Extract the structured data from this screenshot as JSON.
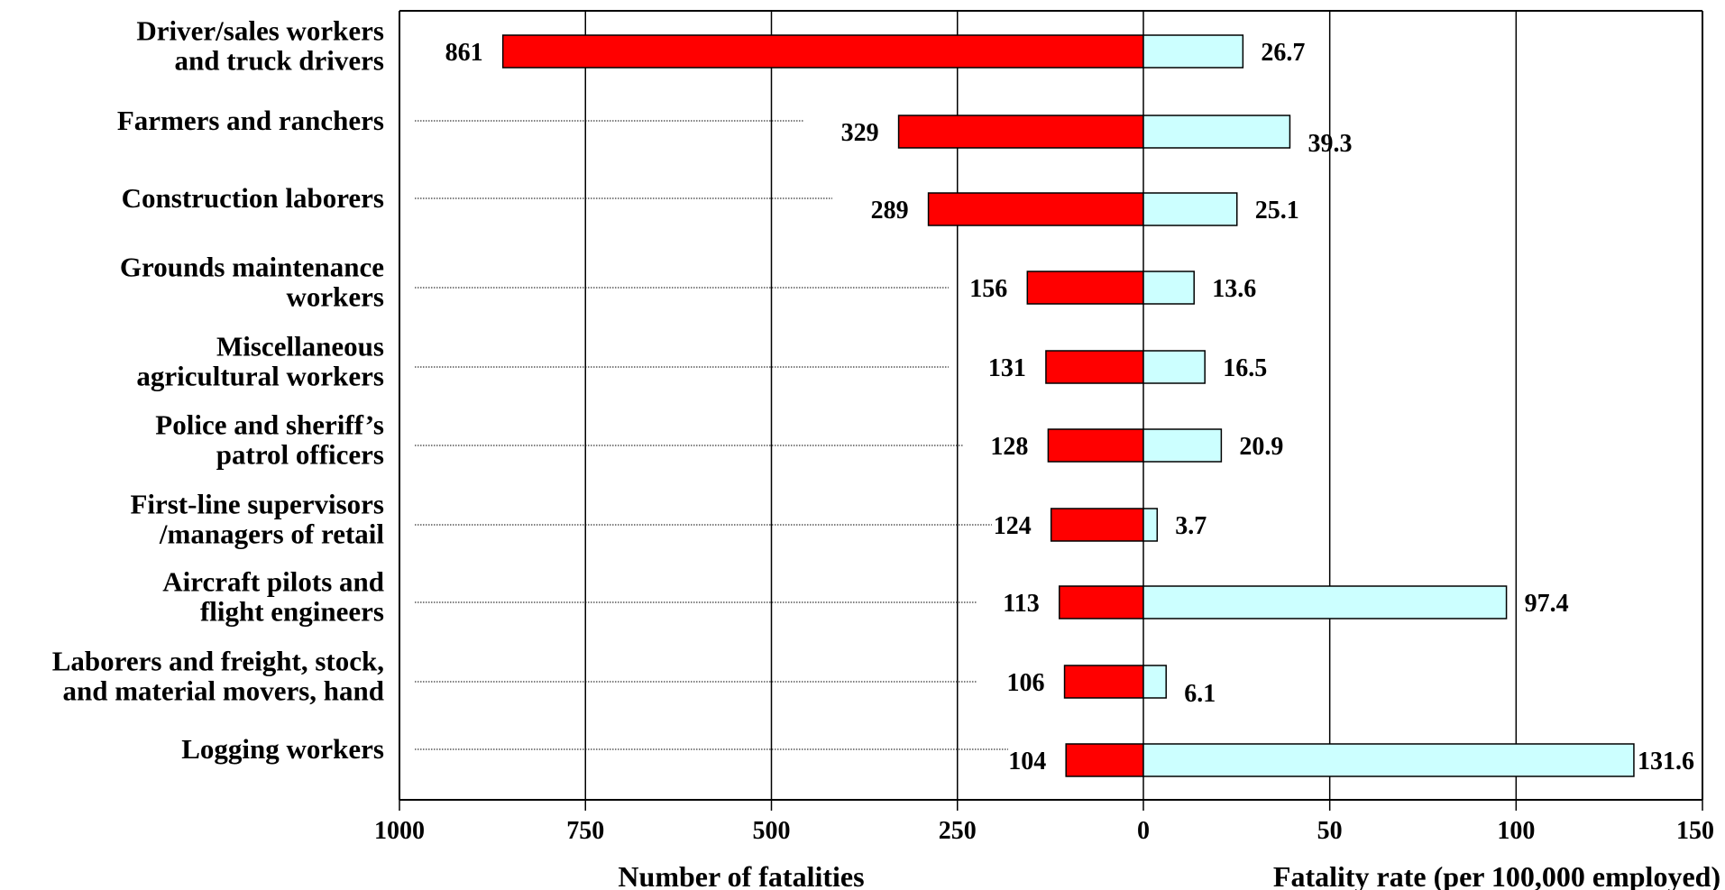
{
  "chart_data": {
    "type": "bar",
    "orientation": "horizontal-diverging",
    "categories": [
      [
        "Driver/sales workers",
        "and truck drivers"
      ],
      [
        "Farmers and ranchers"
      ],
      [
        "Construction laborers"
      ],
      [
        "Grounds maintenance",
        "workers"
      ],
      [
        "Miscellaneous",
        "agricultural workers"
      ],
      [
        "Police and sheriff’s",
        "patrol officers"
      ],
      [
        "First-line supervisors",
        "/managers of retail"
      ],
      [
        "Aircraft pilots and",
        "flight engineers"
      ],
      [
        "Laborers and freight, stock,",
        "and material movers, hand"
      ],
      [
        "Logging workers"
      ]
    ],
    "series": [
      {
        "axis": "left",
        "values": [
          861,
          329,
          289,
          156,
          131,
          128,
          124,
          113,
          106,
          104
        ],
        "labels": [
          "861",
          "329",
          "289",
          "156",
          "131",
          "128",
          "124",
          "113",
          "106",
          "104"
        ],
        "color": "#ff0000"
      },
      {
        "axis": "right",
        "values": [
          26.7,
          39.3,
          25.1,
          13.6,
          16.5,
          20.9,
          3.7,
          97.4,
          6.1,
          131.6
        ],
        "labels": [
          "26.7",
          "39.3",
          "25.1",
          "13.6",
          "16.5",
          "20.9",
          "3.7",
          "97.4",
          "6.1",
          "131.6"
        ],
        "color": "#ccffff"
      }
    ],
    "left_axis": {
      "label": "Number of fatalities",
      "range": [
        1000,
        0
      ],
      "ticks": [
        1000,
        750,
        500,
        250,
        0
      ],
      "tick_labels": [
        "1000",
        "750",
        "500",
        "250",
        "0"
      ]
    },
    "right_axis": {
      "label": "Fatality rate (per 100,000 employed)",
      "range": [
        0,
        150
      ],
      "ticks": [
        50,
        100,
        150
      ],
      "tick_labels": [
        "50",
        "100",
        "150"
      ]
    },
    "grid": "vertical"
  }
}
